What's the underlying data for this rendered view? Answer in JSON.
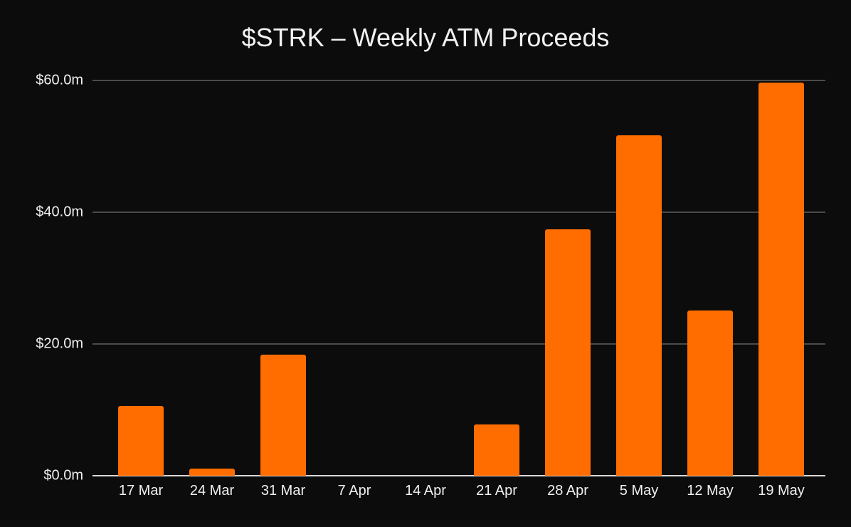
{
  "chart_data": {
    "type": "bar",
    "title": "$STRK – Weekly ATM Proceeds",
    "xlabel": "",
    "ylabel": "",
    "categories": [
      "17 Mar",
      "24 Mar",
      "31 Mar",
      "7 Apr",
      "14 Apr",
      "21 Apr",
      "28 Apr",
      "5 May",
      "12 May",
      "19 May"
    ],
    "values": [
      10.6,
      1.1,
      18.4,
      0,
      0,
      7.8,
      37.4,
      51.7,
      25.1,
      59.7
    ],
    "units": "$m",
    "ylim": [
      0,
      60
    ],
    "yticks": [
      0,
      20,
      40,
      60
    ],
    "ytick_labels": [
      "$0.0m",
      "$20.0m",
      "$40.0m",
      "$60.0m"
    ],
    "grid": true,
    "legend": null,
    "colors": {
      "bar": "#ff6d00",
      "background": "#0c0c0c",
      "grid": "#4a4a4a",
      "axis": "#d8d8d8",
      "text": "#f0f0f0"
    }
  }
}
